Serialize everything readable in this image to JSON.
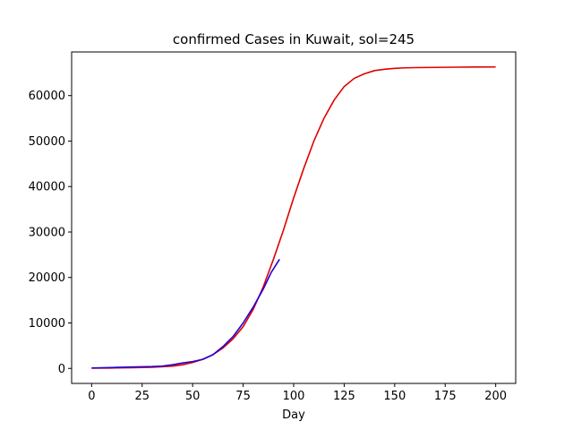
{
  "chart_data": {
    "type": "line",
    "title": "confirmed Cases in Kuwait, sol=245",
    "xlabel": "Day",
    "ylabel": "",
    "xlim": [
      -9.9,
      209.9
    ],
    "ylim": [
      -3300,
      69600
    ],
    "x_ticks": [
      0,
      25,
      50,
      75,
      100,
      125,
      150,
      175,
      200
    ],
    "x_tick_labels": [
      "0",
      "25",
      "50",
      "75",
      "100",
      "125",
      "150",
      "175",
      "200"
    ],
    "y_ticks": [
      0,
      10000,
      20000,
      30000,
      40000,
      50000,
      60000
    ],
    "y_tick_labels": [
      "0",
      "10000",
      "20000",
      "30000",
      "40000",
      "50000",
      "60000"
    ],
    "grid": false,
    "legend": "none",
    "series": [
      {
        "color": "#e00000",
        "x": [
          0,
          10,
          20,
          30,
          40,
          45,
          50,
          55,
          60,
          65,
          70,
          75,
          80,
          85,
          90,
          95,
          100,
          105,
          110,
          115,
          120,
          125,
          130,
          135,
          140,
          145,
          150,
          155,
          160,
          170,
          180,
          190,
          200
        ],
        "values": [
          50,
          90,
          150,
          250,
          500,
          800,
          1300,
          2000,
          3000,
          4500,
          6500,
          9200,
          13000,
          18000,
          24000,
          30500,
          37500,
          44000,
          50000,
          55000,
          59000,
          62000,
          63800,
          64800,
          65500,
          65800,
          66000,
          66100,
          66150,
          66200,
          66250,
          66280,
          66300
        ]
      },
      {
        "color": "#1f00d8",
        "x": [
          0,
          5,
          10,
          15,
          20,
          25,
          30,
          35,
          40,
          45,
          50,
          55,
          60,
          65,
          70,
          75,
          80,
          85,
          89,
          93
        ],
        "values": [
          100,
          150,
          200,
          250,
          300,
          350,
          400,
          500,
          800,
          1200,
          1500,
          2000,
          3000,
          4800,
          7000,
          10000,
          13500,
          17500,
          21200,
          24000
        ]
      }
    ]
  }
}
